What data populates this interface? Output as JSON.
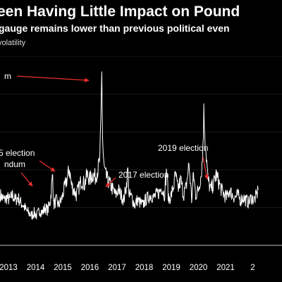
{
  "chart_data": {
    "type": "line",
    "title": "een Having Little Impact on Pound",
    "subtitle": "gauge remains lower than previous political even",
    "ylabel": "volatility",
    "x_ticks": [
      "2013",
      "2014",
      "2015",
      "2016",
      "2017",
      "2018",
      "2019",
      "2020",
      "2021",
      "2"
    ],
    "gridlines": true,
    "line_color": "#ffffff",
    "annotation_color": "#e8302c",
    "annotations": [
      {
        "label": "m",
        "date": "2016-06",
        "index": 0
      },
      {
        "label": "5 election",
        "date": "2015-05",
        "index": 1
      },
      {
        "label": "ndum",
        "date": "2014-09",
        "index": 2
      },
      {
        "label": "2017 election",
        "date": "2017-06",
        "index": 3
      },
      {
        "label": "2019 election",
        "date": "2019-12",
        "index": 4
      }
    ],
    "series": [
      {
        "x": [
          2012.75,
          2012.9,
          2013.0,
          2013.1,
          2013.2,
          2013.3,
          2013.4,
          2013.5,
          2013.6,
          2013.7,
          2013.8,
          2013.9,
          2014.0,
          2014.1,
          2014.2,
          2014.3,
          2014.4,
          2014.5,
          2014.6,
          2014.68,
          2014.72,
          2014.8,
          2014.9,
          2015.0,
          2015.1,
          2015.2,
          2015.3,
          2015.37,
          2015.45,
          2015.55,
          2015.65,
          2015.75,
          2015.85,
          2015.95,
          2016.05,
          2016.15,
          2016.25,
          2016.35,
          2016.42,
          2016.46,
          2016.49,
          2016.52,
          2016.56,
          2016.62,
          2016.7,
          2016.8,
          2016.9,
          2017.0,
          2017.1,
          2017.2,
          2017.3,
          2017.4,
          2017.45,
          2017.5,
          2017.6,
          2017.7,
          2017.8,
          2017.9,
          2018.0,
          2018.1,
          2018.2,
          2018.3,
          2018.4,
          2018.5,
          2018.6,
          2018.7,
          2018.8,
          2018.88,
          2018.95,
          2019.05,
          2019.15,
          2019.2,
          2019.3,
          2019.4,
          2019.5,
          2019.6,
          2019.7,
          2019.75,
          2019.8,
          2019.87,
          2019.95,
          2020.05,
          2020.15,
          2020.2,
          2020.25,
          2020.3,
          2020.4,
          2020.5,
          2020.6,
          2020.7,
          2020.8,
          2020.9,
          2021.0,
          2021.1,
          2021.2,
          2021.3,
          2021.4,
          2021.5,
          2021.6,
          2021.7,
          2021.8,
          2021.9,
          2022.0,
          2022.1,
          2022.2,
          2022.25
        ],
        "values": [
          9,
          8,
          8.5,
          8,
          9,
          8,
          8.5,
          7.5,
          7,
          6,
          5.5,
          5,
          5.5,
          5,
          6,
          5.5,
          6.5,
          6,
          8,
          13,
          7,
          8,
          7,
          8,
          10,
          12,
          14,
          11,
          10,
          9,
          10.5,
          12,
          11,
          13,
          12,
          13,
          12.5,
          14,
          16,
          24,
          34,
          20,
          15,
          13,
          12,
          11,
          10,
          9,
          10,
          9,
          8,
          11,
          14,
          9,
          8.5,
          7,
          8,
          7.5,
          7,
          8,
          8.5,
          9,
          8.5,
          9,
          9.5,
          10.5,
          9,
          14,
          8,
          9,
          11,
          13,
          10,
          12,
          9,
          10.5,
          15,
          12,
          8,
          13,
          9,
          10,
          13,
          16,
          25,
          20,
          12,
          10,
          11,
          13,
          11.5,
          10,
          9,
          8.5,
          10,
          9,
          8.5,
          9,
          8,
          8.5,
          8,
          7.5,
          8.5,
          8,
          9,
          10
        ]
      }
    ]
  }
}
